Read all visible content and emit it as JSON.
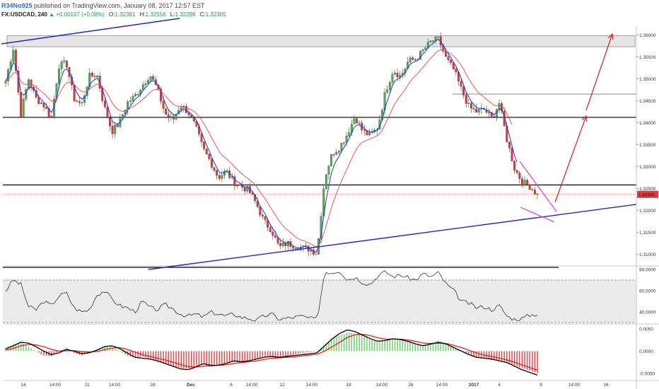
{
  "header": {
    "username": "R34No925",
    "publish_text": "published on TradingView.com, January 08, 2017 12:57 EST",
    "symbol": "FX:USDCAD, 240",
    "change_text": "+0.00107 (+0.08%)",
    "open_label": "O:",
    "open_value": "1.32381",
    "high_label": "H:",
    "high_value": "1.32556",
    "low_label": "L:",
    "low_value": "1.32298",
    "close_label": "C:",
    "close_value": "1.32365"
  },
  "colors": {
    "bull": "#4caf50",
    "bear": "#e53935",
    "ema_fast": "#1e35d8",
    "ema_slow": "#e04848",
    "trendline": "#1f27c8",
    "support": "#000000",
    "projection": "#d61c1c",
    "wedge": "#d63ad6",
    "rsi": "#333333",
    "macd_line": "#000000",
    "signal_line": "#e02020"
  },
  "chart_data": [
    {
      "type": "candlestick",
      "symbol": "FX:USDCAD",
      "interval": "240",
      "y_ticks": [
        "1.36000",
        "1.35500",
        "1.35000",
        "1.34500",
        "1.34000",
        "1.33500",
        "1.33000",
        "1.32500",
        "1.32000",
        "1.31500",
        "1.31000"
      ],
      "ylim": [
        1.3075,
        1.3615
      ],
      "x_ticks": [
        "14",
        "14:00",
        "21",
        "14:00",
        "28",
        "Dec",
        "6",
        "14:00",
        "12",
        "14:00",
        "19",
        "14:00",
        "26",
        "14:00",
        "2017",
        "4",
        "9",
        "14:00",
        "16"
      ],
      "last_price_label": "1.32365",
      "ohlc_points": [
        1.3495,
        1.357,
        1.342,
        1.35,
        1.3455,
        1.344,
        1.341,
        1.353,
        1.3535,
        1.3455,
        1.344,
        1.3505,
        1.351,
        1.3435,
        1.338,
        1.34,
        1.3445,
        1.346,
        1.3485,
        1.351,
        1.3475,
        1.342,
        1.3405,
        1.344,
        1.3425,
        1.339,
        1.334,
        1.331,
        1.3275,
        1.329,
        1.3265,
        1.3255,
        1.3245,
        1.3215,
        1.3175,
        1.3155,
        1.3115,
        1.3125,
        1.312,
        1.3115,
        1.3112,
        1.3102,
        1.3275,
        1.333,
        1.3345,
        1.3375,
        1.3415,
        1.338,
        1.337,
        1.339,
        1.347,
        1.352,
        1.3505,
        1.354,
        1.3545,
        1.3565,
        1.3585,
        1.359,
        1.3545,
        1.352,
        1.3475,
        1.3435,
        1.3425,
        1.343,
        1.341,
        1.3445,
        1.336,
        1.3295,
        1.3265,
        1.3255,
        1.3235
      ],
      "horizontal_levels": [
        1.3412,
        1.3258,
        1.3465
      ],
      "resistance_zone": [
        1.3573,
        1.3598
      ],
      "emas": [
        "fast",
        "slow"
      ]
    },
    {
      "type": "line",
      "indicator": "RSI",
      "y_ticks": [
        "80.0000",
        "60.0000",
        "40.0000"
      ],
      "ylim": [
        30,
        80
      ],
      "bands": [
        70,
        30
      ],
      "values": [
        60,
        70,
        66,
        45,
        42,
        50,
        46,
        55,
        58,
        44,
        40,
        42,
        56,
        60,
        52,
        46,
        44,
        40,
        50,
        44,
        42,
        47,
        43,
        38,
        36,
        38,
        35,
        40,
        38,
        36,
        38,
        35,
        34,
        32,
        36,
        38,
        33,
        34,
        35,
        36,
        34,
        33,
        78,
        77,
        79,
        70,
        73,
        68,
        66,
        74,
        78,
        73,
        75,
        72,
        70,
        76,
        73,
        77,
        66,
        60,
        50,
        48,
        44,
        45,
        42,
        46,
        36,
        33,
        34,
        37,
        38
      ]
    },
    {
      "type": "bar",
      "indicator": "MACD",
      "y_ticks": [
        "0.0050",
        "0.0000",
        "-0.0050"
      ],
      "ylim": [
        -0.0063,
        0.0058
      ],
      "histogram": [
        0.0008,
        0.0015,
        0.002,
        0.001,
        0.0,
        -0.001,
        -0.0012,
        0.0,
        0.0008,
        -0.0004,
        -0.001,
        -0.0002,
        0.0004,
        0.0012,
        0.0008,
        0.0002,
        -0.001,
        -0.0015,
        -0.0012,
        -0.0018,
        -0.0024,
        -0.0028,
        -0.0033,
        -0.0038,
        -0.004,
        -0.0034,
        -0.003,
        -0.0036,
        -0.0032,
        -0.0028,
        -0.0024,
        -0.0026,
        -0.0022,
        -0.0018,
        -0.0014,
        -0.0012,
        -0.0016,
        -0.0012,
        -0.0008,
        -0.0004,
        -0.0002,
        0.0,
        0.0015,
        0.0028,
        0.0036,
        0.0042,
        0.004,
        0.0036,
        0.0026,
        0.002,
        0.0024,
        0.0028,
        0.0026,
        0.0022,
        0.0016,
        0.0014,
        0.002,
        0.0024,
        0.0018,
        0.0008,
        0.0,
        -0.0008,
        -0.0014,
        -0.0016,
        -0.002,
        -0.0022,
        -0.0026,
        -0.0032,
        -0.0038,
        -0.0044,
        -0.005
      ],
      "macd_line": [
        0.0005,
        0.0012,
        0.002,
        0.0018,
        0.001,
        0.0,
        -0.0008,
        -0.0004,
        0.0004,
        0.0,
        -0.0006,
        -0.0004,
        0.0002,
        0.001,
        0.0012,
        0.0006,
        -0.0004,
        -0.0014,
        -0.0016,
        -0.0018,
        -0.0022,
        -0.0028,
        -0.0034,
        -0.004,
        -0.0042,
        -0.0036,
        -0.0028,
        -0.0032,
        -0.0032,
        -0.0028,
        -0.0022,
        -0.0024,
        -0.0022,
        -0.0018,
        -0.0014,
        -0.0012,
        -0.0014,
        -0.0012,
        -0.001,
        -0.0008,
        -0.0006,
        -0.0004,
        0.0012,
        0.0028,
        0.004,
        0.0048,
        0.0044,
        0.0036,
        0.0028,
        0.0022,
        0.0024,
        0.0028,
        0.0026,
        0.0022,
        0.0016,
        0.0012,
        0.0016,
        0.002,
        0.0016,
        0.0008,
        0.0,
        -0.0008,
        -0.0014,
        -0.0016,
        -0.0018,
        -0.0022,
        -0.0026,
        -0.0034,
        -0.0042,
        -0.0048,
        -0.0054
      ],
      "signal_line": [
        0.0002,
        0.0006,
        0.0012,
        0.0015,
        0.0014,
        0.001,
        0.0004,
        0.0,
        0.0001,
        0.0001,
        -0.0001,
        -0.0002,
        -0.0001,
        0.0003,
        0.0007,
        0.0008,
        0.0004,
        -0.0002,
        -0.0008,
        -0.0012,
        -0.0016,
        -0.002,
        -0.0025,
        -0.003,
        -0.0035,
        -0.0036,
        -0.0034,
        -0.0033,
        -0.0032,
        -0.0031,
        -0.0028,
        -0.0026,
        -0.0024,
        -0.0022,
        -0.0019,
        -0.0016,
        -0.0015,
        -0.0014,
        -0.0013,
        -0.0011,
        -0.0009,
        -0.0007,
        0.0,
        0.001,
        0.002,
        0.0031,
        0.0037,
        0.0038,
        0.0035,
        0.003,
        0.0027,
        0.0027,
        0.0027,
        0.0025,
        0.0022,
        0.0018,
        0.0017,
        0.0018,
        0.0017,
        0.0013,
        0.0008,
        0.0002,
        -0.0004,
        -0.0009,
        -0.0012,
        -0.0016,
        -0.002,
        -0.0025,
        -0.0031,
        -0.0037,
        -0.0043
      ]
    }
  ]
}
